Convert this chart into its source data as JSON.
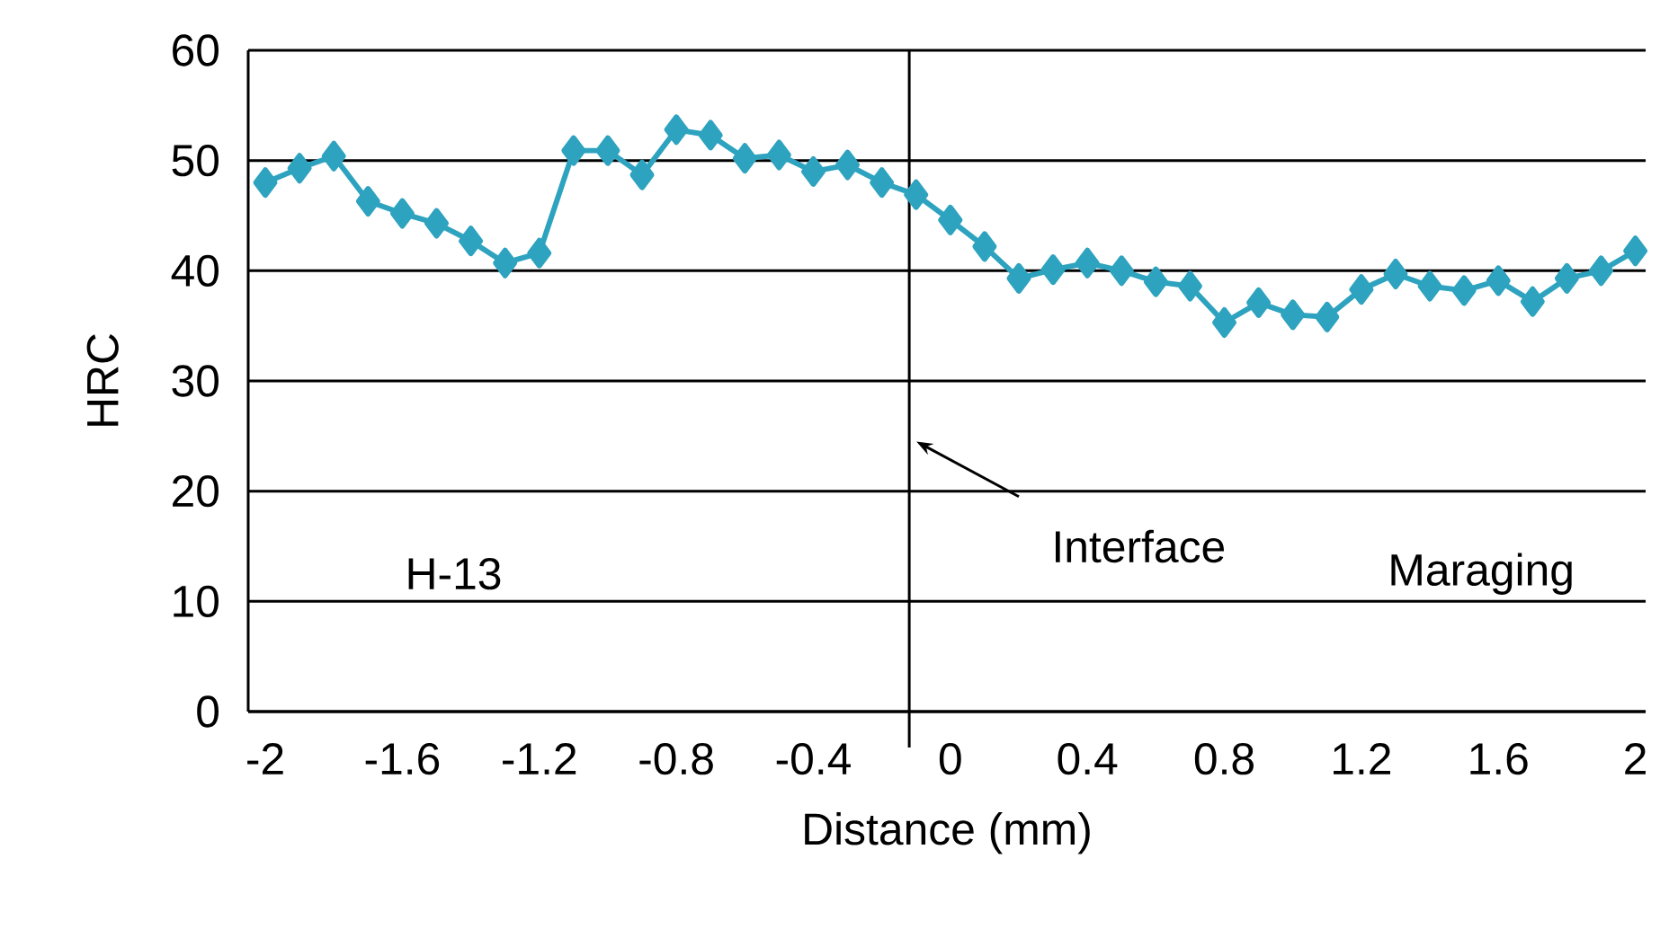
{
  "chart_data": {
    "type": "line",
    "xlabel": "Distance (mm)",
    "ylabel": "HRC",
    "x": [
      -2,
      -1.9,
      -1.8,
      -1.7,
      -1.6,
      -1.5,
      -1.4,
      -1.3,
      -1.2,
      -1.1,
      -1,
      -0.9,
      -0.8,
      -0.7,
      -0.6,
      -0.5,
      -0.4,
      -0.3,
      -0.2,
      -0.1,
      0,
      0.1,
      0.2,
      0.3,
      0.4,
      0.5,
      0.6,
      0.7,
      0.8,
      0.9,
      1,
      1.1,
      1.2,
      1.3,
      1.4,
      1.5,
      1.6,
      1.7,
      1.8,
      1.9,
      2
    ],
    "series": [
      {
        "color": "#2ea3bf",
        "values": [
          48.0,
          49.3,
          50.4,
          46.3,
          45.2,
          44.3,
          42.7,
          40.7,
          41.6,
          50.9,
          50.9,
          48.7,
          52.8,
          52.3,
          50.2,
          50.5,
          49.0,
          49.6,
          48.0,
          46.9,
          44.6,
          42.2,
          39.3,
          40.1,
          40.7,
          40.0,
          39.0,
          38.6,
          35.3,
          37.1,
          36.0,
          35.8,
          38.3,
          39.7,
          38.6,
          38.2,
          39.1,
          37.2,
          39.3,
          40.0,
          41.8
        ]
      }
    ],
    "xlim": [
      -2.05,
      2.03
    ],
    "ylim": [
      0,
      60
    ],
    "xticks": [
      -2,
      -1.6,
      -1.2,
      -0.8,
      -0.4,
      0,
      0.4,
      0.8,
      1.2,
      1.6,
      2
    ],
    "yticks": [
      0,
      10,
      20,
      30,
      40,
      50,
      60
    ],
    "grid": "y",
    "marker": "diamond",
    "line_style": "solid",
    "ref_lines": [
      {
        "axis": "x",
        "value": -0.12,
        "color": "#000000"
      }
    ],
    "annotations": [
      "H-13",
      "Interface",
      "Maraging"
    ]
  }
}
